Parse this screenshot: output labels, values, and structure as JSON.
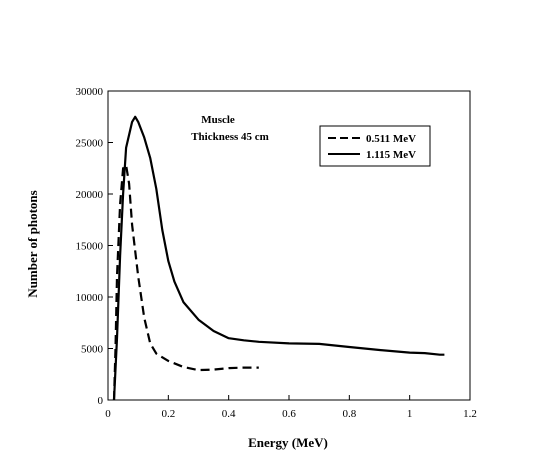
{
  "chart_data": {
    "type": "line",
    "xlabel": "Energy (MeV)",
    "ylabel": "Number of photons",
    "xlim": [
      0,
      1.2
    ],
    "ylim": [
      0,
      30000
    ],
    "xticks": [
      0,
      0.2,
      0.4,
      0.6,
      0.8,
      1,
      1.2
    ],
    "xtick_labels": [
      "0",
      "0.2",
      "0.4",
      "0.6",
      "0.8",
      "1",
      "1.2"
    ],
    "yticks": [
      0,
      5000,
      10000,
      15000,
      20000,
      25000,
      30000
    ],
    "ytick_labels": [
      "0",
      "5000",
      "10000",
      "15000",
      "20000",
      "25000",
      "30000"
    ],
    "annotations": [
      "Muscle",
      "Thickness 45 cm"
    ],
    "legend": {
      "placement": "top-right"
    },
    "grid": false,
    "series": [
      {
        "name": "0.511 MeV",
        "style": "dashed",
        "color": "#000000",
        "points": [
          [
            0.02,
            0
          ],
          [
            0.025,
            5000
          ],
          [
            0.03,
            12000
          ],
          [
            0.04,
            19000
          ],
          [
            0.05,
            22500
          ],
          [
            0.06,
            22800
          ],
          [
            0.07,
            21000
          ],
          [
            0.08,
            17000
          ],
          [
            0.1,
            12000
          ],
          [
            0.12,
            8000
          ],
          [
            0.14,
            5500
          ],
          [
            0.16,
            4500
          ],
          [
            0.2,
            3800
          ],
          [
            0.25,
            3200
          ],
          [
            0.3,
            2900
          ],
          [
            0.35,
            2950
          ],
          [
            0.4,
            3100
          ],
          [
            0.45,
            3150
          ],
          [
            0.5,
            3150
          ]
        ]
      },
      {
        "name": "1.115 MeV",
        "style": "solid",
        "color": "#000000",
        "points": [
          [
            0.02,
            0
          ],
          [
            0.03,
            6000
          ],
          [
            0.04,
            14000
          ],
          [
            0.05,
            20000
          ],
          [
            0.06,
            24500
          ],
          [
            0.08,
            27000
          ],
          [
            0.09,
            27500
          ],
          [
            0.1,
            27000
          ],
          [
            0.12,
            25500
          ],
          [
            0.14,
            23500
          ],
          [
            0.16,
            20500
          ],
          [
            0.18,
            16500
          ],
          [
            0.2,
            13500
          ],
          [
            0.22,
            11500
          ],
          [
            0.25,
            9500
          ],
          [
            0.3,
            7800
          ],
          [
            0.35,
            6700
          ],
          [
            0.4,
            6000
          ],
          [
            0.45,
            5800
          ],
          [
            0.5,
            5650
          ],
          [
            0.6,
            5500
          ],
          [
            0.7,
            5450
          ],
          [
            0.8,
            5150
          ],
          [
            0.9,
            4850
          ],
          [
            1.0,
            4600
          ],
          [
            1.05,
            4550
          ],
          [
            1.1,
            4400
          ],
          [
            1.115,
            4400
          ]
        ]
      }
    ]
  }
}
